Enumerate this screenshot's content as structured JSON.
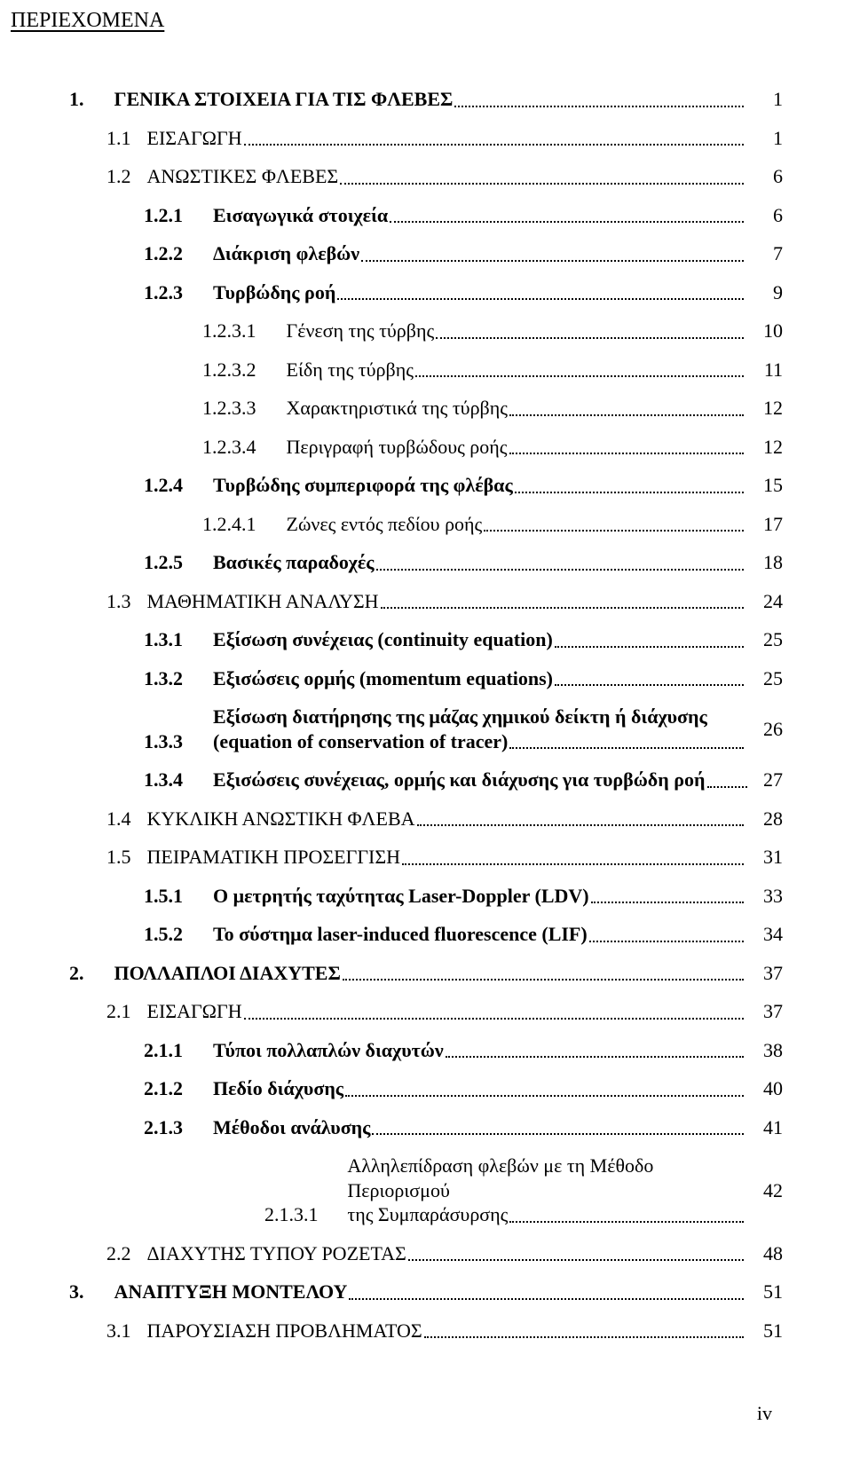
{
  "header": "ΠΕΡΙΕΧΟΜΕΝΑ",
  "footer": "iv",
  "rows": [
    {
      "indent": "ind0",
      "bold": true,
      "num": "1.",
      "gap": "gap-wide",
      "text": "ΓΕΝΙΚΑ ΣΤΟΙΧΕΙΑ ΓΙΑ ΤΙΣ ΦΛΕΒΕΣ",
      "page": "1"
    },
    {
      "indent": "ind1",
      "bold": false,
      "num": "1.1",
      "gap": "gap-after-num",
      "text": "ΕΙΣΑΓΩΓΗ",
      "page": "1"
    },
    {
      "indent": "ind1",
      "bold": false,
      "num": "1.2",
      "gap": "gap-after-num",
      "text": "ΑΝΩΣΤΙΚΕΣ ΦΛΕΒΕΣ",
      "page": "6"
    },
    {
      "indent": "ind2",
      "bold": true,
      "num": "1.2.1",
      "gap": "gap-wide",
      "text": "Εισαγωγικά στοιχεία",
      "page": "6"
    },
    {
      "indent": "ind2",
      "bold": true,
      "num": "1.2.2",
      "gap": "gap-wide",
      "text": "Διάκριση φλεβών",
      "page": "7"
    },
    {
      "indent": "ind2",
      "bold": true,
      "num": "1.2.3",
      "gap": "gap-wide",
      "text": "Τυρβώδης ροή",
      "page": "9"
    },
    {
      "indent": "ind3",
      "bold": false,
      "num": "1.2.3.1",
      "gap": "gap-wide",
      "text": "Γένεση της τύρβης",
      "page": "10"
    },
    {
      "indent": "ind3",
      "bold": false,
      "num": "1.2.3.2",
      "gap": "gap-wide",
      "text": "Είδη της τύρβης",
      "page": "11"
    },
    {
      "indent": "ind3",
      "bold": false,
      "num": "1.2.3.3",
      "gap": "gap-wide",
      "text": "Χαρακτηριστικά της τύρβης",
      "page": "12"
    },
    {
      "indent": "ind3",
      "bold": false,
      "num": "1.2.3.4",
      "gap": "gap-wide",
      "text": "Περιγραφή τυρβώδους ροής",
      "page": "12"
    },
    {
      "indent": "ind2",
      "bold": true,
      "num": "1.2.4",
      "gap": "gap-wide",
      "text": "Τυρβώδης συμπεριφορά της φλέβας",
      "page": "15"
    },
    {
      "indent": "ind3",
      "bold": false,
      "num": "1.2.4.1",
      "gap": "gap-wide",
      "text": "Ζώνες εντός πεδίου ροής",
      "page": "17"
    },
    {
      "indent": "ind2",
      "bold": true,
      "num": "1.2.5",
      "gap": "gap-wide",
      "text": "Βασικές παραδοχές",
      "page": "18"
    },
    {
      "indent": "ind1",
      "bold": false,
      "num": "1.3",
      "gap": "gap-after-num",
      "text": "ΜΑΘΗΜΑΤΙΚΗ ΑΝΑΛΥΣΗ",
      "page": "24"
    },
    {
      "indent": "ind2",
      "bold": true,
      "num": "1.3.1",
      "gap": "gap-wide",
      "text": "Εξίσωση συνέχειας (continuity equation)",
      "page": "25"
    },
    {
      "indent": "ind2",
      "bold": true,
      "num": "1.3.2",
      "gap": "gap-wide",
      "text": "Εξισώσεις ορμής (momentum equations)",
      "page": "25"
    },
    {
      "indent": "ind2",
      "bold": true,
      "num": "1.3.3",
      "gap": "gap-wide",
      "multiline": true,
      "line1": "Εξίσωση διατήρησης της μάζας χημικού δείκτη ή διάχυσης",
      "line2": "(equation of conservation of tracer)",
      "page": "26"
    },
    {
      "indent": "ind2",
      "bold": true,
      "num": "1.3.4",
      "gap": "gap-wide",
      "text": "Εξισώσεις συνέχειας, ορμής και διάχυσης για τυρβώδη ροή",
      "short": true,
      "page": "27"
    },
    {
      "indent": "ind1",
      "bold": false,
      "num": "1.4",
      "gap": "gap-after-num",
      "text": "ΚΥΚΛΙΚΗ ΑΝΩΣΤΙΚΗ ΦΛΕΒΑ",
      "page": "28"
    },
    {
      "indent": "ind1",
      "bold": false,
      "num": "1.5",
      "gap": "gap-after-num",
      "text": "ΠΕΙΡΑΜΑΤΙΚΗ ΠΡΟΣΕΓΓΙΣΗ",
      "page": "31"
    },
    {
      "indent": "ind2",
      "bold": true,
      "num": "1.5.1",
      "gap": "gap-wide",
      "text": "Ο μετρητής ταχύτητας Laser-Doppler (LDV)",
      "page": "33"
    },
    {
      "indent": "ind2",
      "bold": true,
      "num": "1.5.2",
      "gap": "gap-wide",
      "text": "Το σύστημα laser-induced fluorescence (LIF)",
      "page": "34"
    },
    {
      "indent": "ind0",
      "bold": true,
      "num": "2.",
      "gap": "gap-wide",
      "text": "ΠΟΛΛΑΠΛΟΙ ΔΙΑΧΥΤΕΣ",
      "page": "37"
    },
    {
      "indent": "ind1",
      "bold": false,
      "num": "2.1",
      "gap": "gap-after-num",
      "text": "ΕΙΣΑΓΩΓΗ",
      "page": "37"
    },
    {
      "indent": "ind2",
      "bold": true,
      "num": "2.1.1",
      "gap": "gap-wide",
      "text": "Τύποι πολλαπλών διαχυτών",
      "page": "38"
    },
    {
      "indent": "ind2",
      "bold": true,
      "num": "2.1.2",
      "gap": "gap-wide",
      "text": "Πεδίο διάχυσης",
      "page": "40"
    },
    {
      "indent": "ind2",
      "bold": true,
      "num": "2.1.3",
      "gap": "gap-wide",
      "text": "Μέθοδοι ανάλυσης",
      "page": "41"
    },
    {
      "indent": "ind4",
      "bold": false,
      "num": "2.1.3.1",
      "gap": "gap-wide",
      "multiline": true,
      "line1": "Αλληλεπίδραση φλεβών με τη Μέθοδο Περιορισμού",
      "line2": "της Συμπαράσυρσης",
      "page": "42"
    },
    {
      "indent": "ind1",
      "bold": false,
      "num": "2.2",
      "gap": "gap-after-num",
      "text": "ΔΙΑΧΥΤΗΣ ΤΥΠΟΥ ΡΟΖΕΤΑΣ",
      "page": "48"
    },
    {
      "indent": "ind0",
      "bold": true,
      "num": "3.",
      "gap": "gap-wide",
      "text": "ΑΝΑΠΤΥΞΗ ΜΟΝΤΕΛΟΥ",
      "page": "51"
    },
    {
      "indent": "ind1",
      "bold": false,
      "num": "3.1",
      "gap": "gap-after-num",
      "text": "ΠΑΡΟΥΣΙΑΣΗ ΠΡΟΒΛΗΜΑΤΟΣ",
      "page": "51"
    }
  ]
}
